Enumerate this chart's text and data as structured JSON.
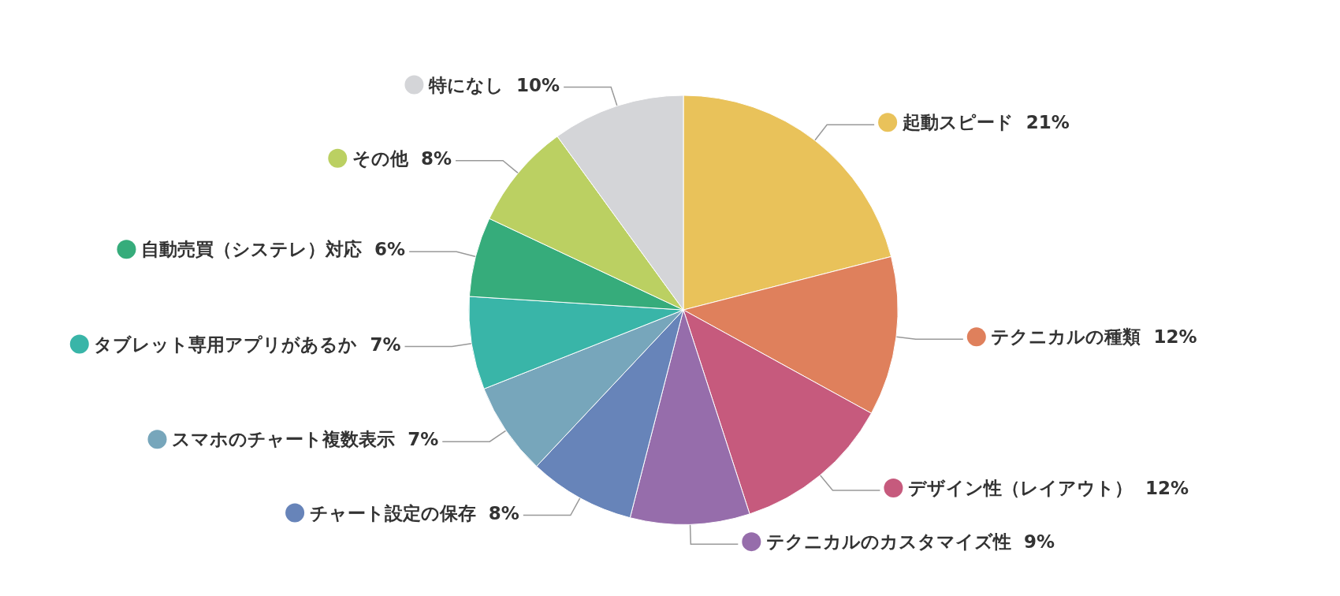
{
  "chart_data": {
    "type": "pie",
    "categories": [
      "起動スピード",
      "テクニカルの種類",
      "デザイン性（レイアウト）",
      "テクニカルのカスタマイズ性",
      "チャート設定の保存",
      "スマホのチャート複数表示",
      "タブレット専用アプリがあるか",
      "自動売買（システレ）対応",
      "その他",
      "特になし"
    ],
    "values": [
      21,
      12,
      12,
      9,
      8,
      7,
      7,
      6,
      8,
      10
    ],
    "value_labels": [
      "21%",
      "12%",
      "12%",
      "9%",
      "8%",
      "7%",
      "7%",
      "6%",
      "8%",
      "10%"
    ],
    "colors": [
      "#e9c25a",
      "#df805c",
      "#c65a7d",
      "#966dab",
      "#6784b9",
      "#77a6bb",
      "#39b5a8",
      "#36ac7b",
      "#bbd062",
      "#d4d5d8"
    ],
    "legend": "bottom left"
  }
}
